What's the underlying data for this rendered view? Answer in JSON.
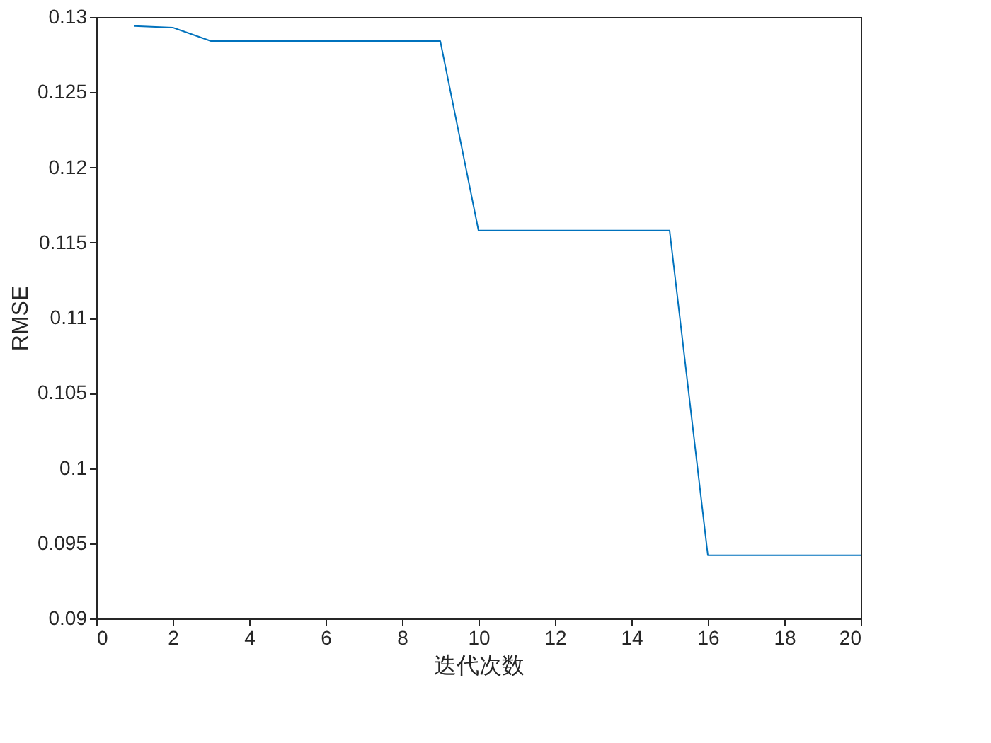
{
  "chart_data": {
    "type": "line",
    "xlabel": "迭代次数",
    "ylabel": "RMSE",
    "x": [
      1,
      2,
      3,
      4,
      5,
      6,
      7,
      8,
      9,
      10,
      11,
      12,
      13,
      14,
      15,
      16,
      17,
      18,
      19,
      20
    ],
    "series": [
      {
        "color": "#0072bd",
        "values": [
          0.1294,
          0.1293,
          0.1284,
          0.1284,
          0.1284,
          0.1284,
          0.1284,
          0.1284,
          0.1284,
          0.1158,
          0.1158,
          0.1158,
          0.1158,
          0.1158,
          0.1158,
          0.0942,
          0.0942,
          0.0942,
          0.0942,
          0.0942
        ]
      }
    ],
    "xlim": [
      0,
      20
    ],
    "xticks": [
      0,
      2,
      4,
      6,
      8,
      10,
      12,
      14,
      16,
      18,
      20
    ],
    "ylim": [
      0.09,
      0.13
    ],
    "yticks": [
      0.09,
      0.095,
      0.1,
      0.105,
      0.11,
      0.115,
      0.12,
      0.125,
      0.13
    ],
    "grid": false,
    "legend": false,
    "marker": "none",
    "line_style": "solid"
  }
}
